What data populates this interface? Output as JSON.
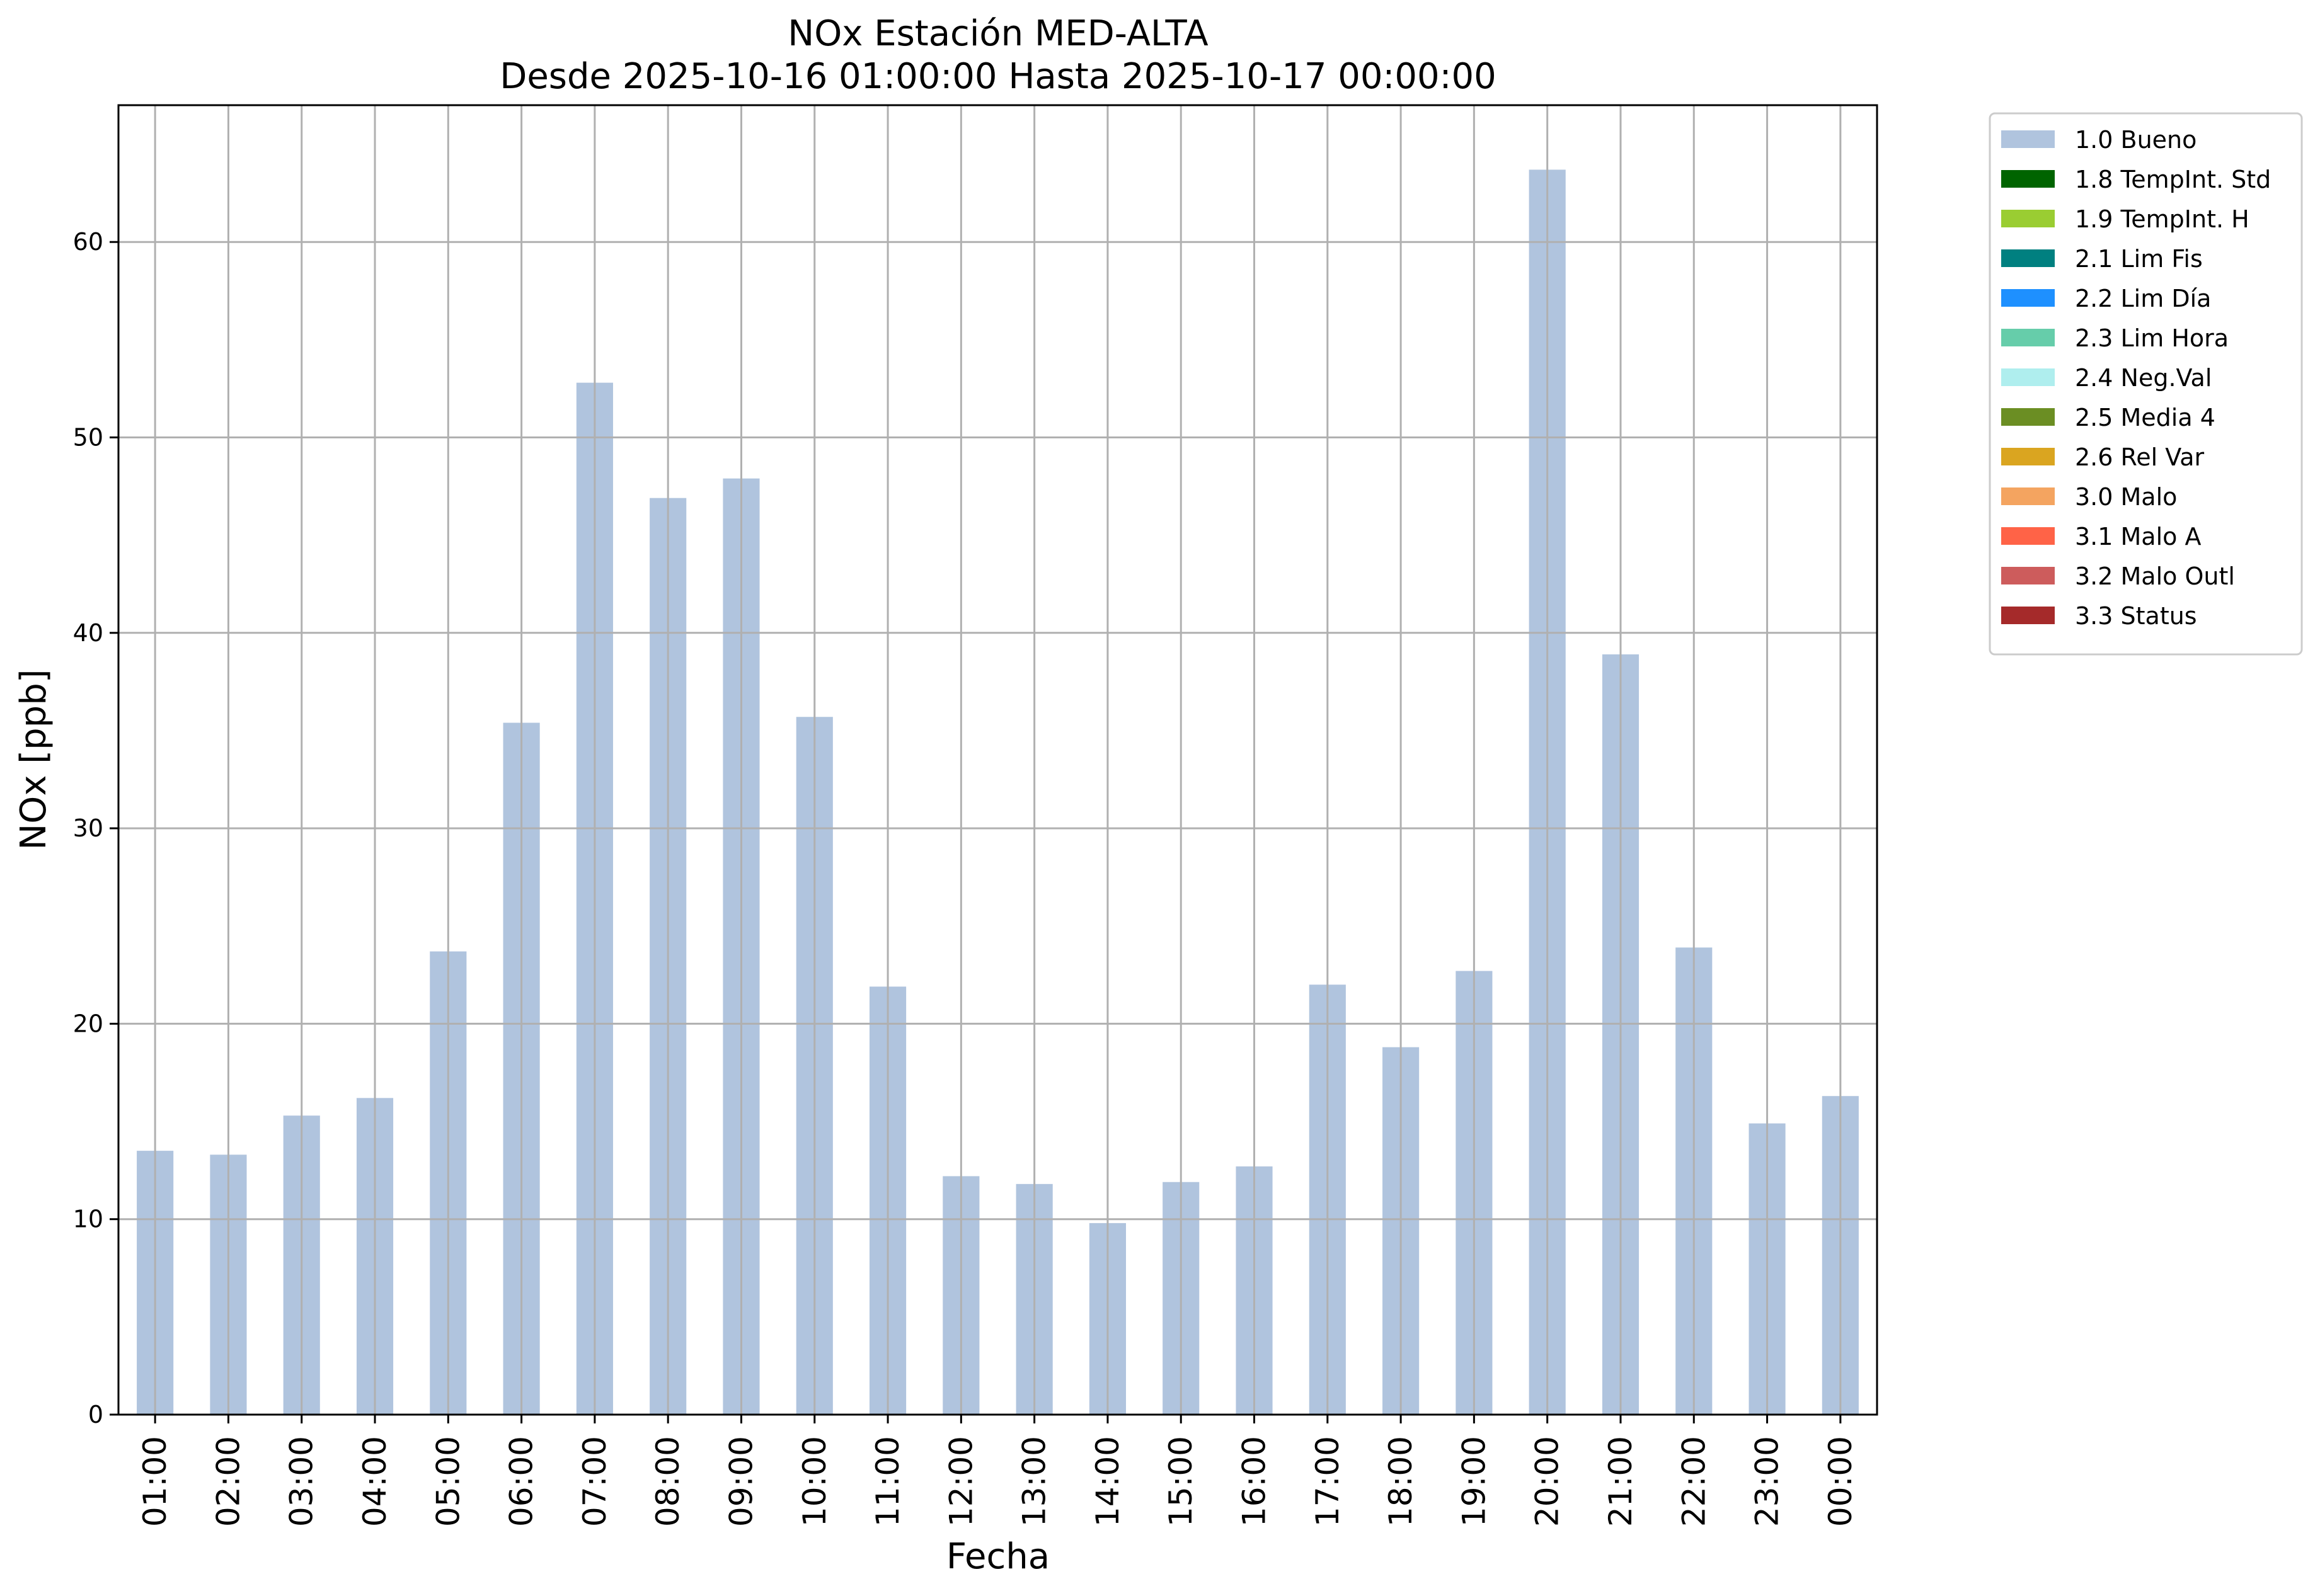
{
  "chart_data": {
    "type": "bar",
    "title": "NOx Estación MED-ALTA",
    "subtitle": "Desde 2025-10-16 01:00:00 Hasta 2025-10-17 00:00:00",
    "xlabel": "Fecha",
    "ylabel": "NOx [ppb]",
    "ylim": [
      0,
      67
    ],
    "yticks": [
      0,
      10,
      20,
      30,
      40,
      50,
      60
    ],
    "grid": true,
    "categories": [
      "01:00",
      "02:00",
      "03:00",
      "04:00",
      "05:00",
      "06:00",
      "07:00",
      "08:00",
      "09:00",
      "10:00",
      "11:00",
      "12:00",
      "13:00",
      "14:00",
      "15:00",
      "16:00",
      "17:00",
      "18:00",
      "19:00",
      "20:00",
      "21:00",
      "22:00",
      "23:00",
      "00:00"
    ],
    "series": [
      {
        "name": "1.0 Bueno",
        "color": "#b0c4de",
        "values": [
          13.5,
          13.3,
          15.3,
          16.2,
          23.7,
          35.4,
          52.8,
          46.9,
          47.9,
          35.7,
          21.9,
          12.2,
          11.8,
          9.8,
          11.9,
          12.7,
          22.0,
          18.8,
          22.7,
          63.7,
          38.9,
          23.9,
          14.9,
          16.3
        ]
      }
    ],
    "legend": {
      "placement": "outside-top-right",
      "entries": [
        {
          "label": "1.0 Bueno",
          "color": "#b0c4de"
        },
        {
          "label": "1.8 TempInt. Std",
          "color": "#006400"
        },
        {
          "label": "1.9 TempInt. H",
          "color": "#9acd32"
        },
        {
          "label": "2.1 Lim Fis",
          "color": "#008080"
        },
        {
          "label": "2.2 Lim Día",
          "color": "#1e90ff"
        },
        {
          "label": "2.3 Lim Hora",
          "color": "#66cdaa"
        },
        {
          "label": "2.4 Neg.Val",
          "color": "#afeeee"
        },
        {
          "label": "2.5 Media 4",
          "color": "#6b8e23"
        },
        {
          "label": "2.6 Rel Var",
          "color": "#daa520"
        },
        {
          "label": "3.0 Malo",
          "color": "#f4a460"
        },
        {
          "label": "3.1 Malo A",
          "color": "#ff6347"
        },
        {
          "label": "3.2 Malo Outl",
          "color": "#cd5c5c"
        },
        {
          "label": "3.3 Status",
          "color": "#a52a2a"
        }
      ]
    }
  }
}
